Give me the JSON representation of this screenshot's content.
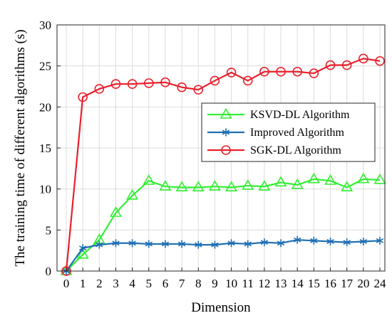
{
  "chart_data": {
    "type": "line",
    "title": "",
    "xlabel": "Dimension",
    "ylabel": "The training time of different algorithms (s)",
    "categories": [
      "0",
      "1",
      "2",
      "3",
      "4",
      "5",
      "6",
      "7",
      "8",
      "9",
      "10",
      "11",
      "12",
      "13",
      "14",
      "15",
      "16",
      "17",
      "20",
      "24"
    ],
    "ylim": [
      0,
      30
    ],
    "yticks": [
      0,
      5,
      10,
      15,
      20,
      25,
      30
    ],
    "grid": true,
    "legend_position": "center-right",
    "series": [
      {
        "name": "KSVD-DL Algorithm",
        "color": "#33ee33",
        "marker": "triangle",
        "values": [
          0,
          2.0,
          3.8,
          7.1,
          9.2,
          11.0,
          10.3,
          10.2,
          10.2,
          10.3,
          10.2,
          10.4,
          10.3,
          10.8,
          10.5,
          11.2,
          11.0,
          10.2,
          11.2,
          11.1
        ]
      },
      {
        "name": "Improved Algorithm",
        "color": "#1f6fb4",
        "marker": "asterisk",
        "values": [
          0,
          2.8,
          3.2,
          3.4,
          3.4,
          3.3,
          3.3,
          3.3,
          3.2,
          3.2,
          3.4,
          3.3,
          3.5,
          3.4,
          3.8,
          3.7,
          3.6,
          3.5,
          3.6,
          3.7
        ]
      },
      {
        "name": "SGK-DL Algorithm",
        "color": "#e8212d",
        "marker": "circle",
        "values": [
          0,
          21.2,
          22.2,
          22.8,
          22.8,
          22.9,
          23.0,
          22.4,
          22.1,
          23.2,
          24.2,
          23.2,
          24.3,
          24.3,
          24.3,
          24.1,
          25.1,
          25.1,
          25.9,
          25.6
        ]
      }
    ]
  }
}
